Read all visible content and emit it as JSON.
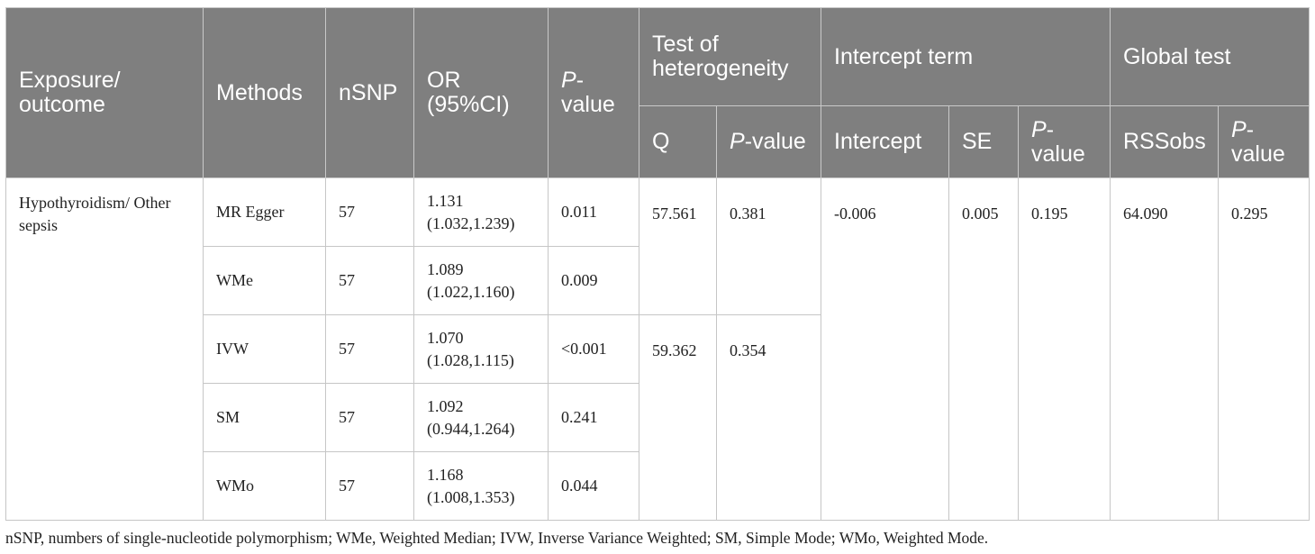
{
  "table": {
    "headers": {
      "exposure": "Exposure/ outcome",
      "methods": "Methods",
      "nsnp": "nSNP",
      "or": "OR (95%CI)",
      "p_value_italic": "P",
      "p_value_rest": "-value",
      "heterogeneity_group": "Test of heterogeneity",
      "intercept_group": "Intercept term",
      "global_group": "Global test",
      "q": "Q",
      "intercept": "Intercept",
      "se": "SE",
      "rssobs": "RSSobs"
    },
    "exposure_cell": "Hypothyroidism/ Other sepsis",
    "rows": [
      {
        "method": "MR Egger",
        "nsnp": "57",
        "or_value": "1.131",
        "or_ci": "(1.032,1.239)",
        "p": "0.011"
      },
      {
        "method": "WMe",
        "nsnp": "57",
        "or_value": "1.089",
        "or_ci": "(1.022,1.160)",
        "p": "0.009"
      },
      {
        "method": "IVW",
        "nsnp": "57",
        "or_value": "1.070",
        "or_ci": "(1.028,1.115)",
        "p": "<0.001"
      },
      {
        "method": "SM",
        "nsnp": "57",
        "or_value": "1.092",
        "or_ci": "(0.944,1.264)",
        "p": "0.241"
      },
      {
        "method": "WMo",
        "nsnp": "57",
        "or_value": "1.168",
        "or_ci": "(1.008,1.353)",
        "p": "0.044"
      }
    ],
    "heterogeneity": [
      {
        "q": "57.561",
        "p": "0.381"
      },
      {
        "q": "59.362",
        "p": "0.354"
      }
    ],
    "intercept_term": {
      "intercept": "-0.006",
      "se": "0.005",
      "p": "0.195"
    },
    "global_test": {
      "rssobs": "64.090",
      "p": "0.295"
    }
  },
  "footnote": "nSNP, numbers of single-nucleotide polymorphism; WMe, Weighted Median; IVW, Inverse Variance Weighted; SM, Simple Mode; WMo, Weighted Mode."
}
